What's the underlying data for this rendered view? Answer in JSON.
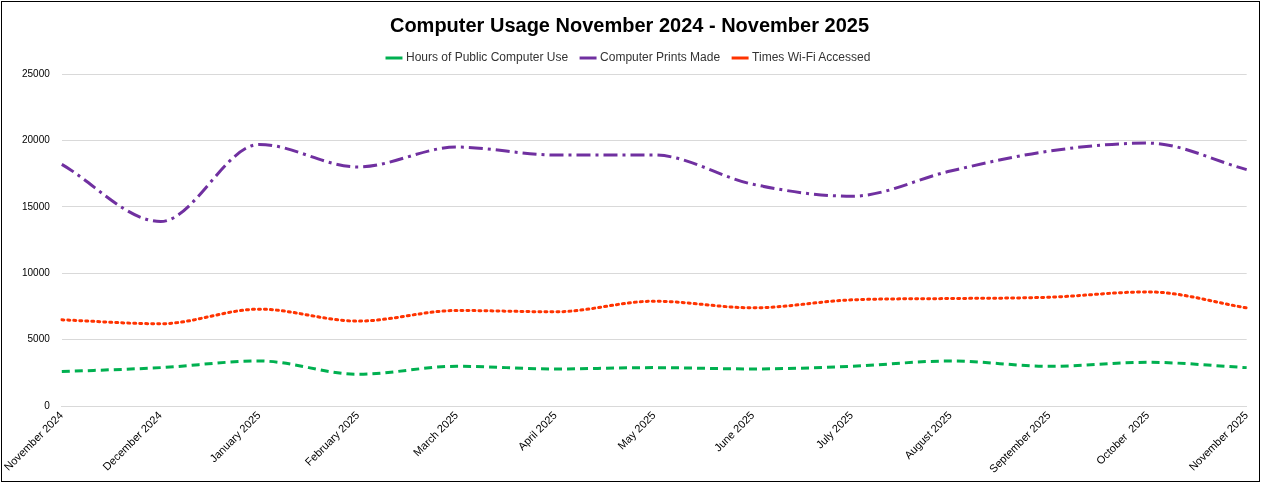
{
  "chart_data": {
    "type": "line",
    "title": "Computer Usage November 2024 - November 2025",
    "categories": [
      "November 2024",
      "December 2024",
      "January 2025",
      "February 2025",
      "March 2025",
      "April 2025",
      "May 2025",
      "June 2025",
      "July 2025",
      "August 2025",
      "September 2025",
      "October  2025",
      "November 2025"
    ],
    "series": [
      {
        "name": "Hours of Public Computer Use",
        "color": "#00b050",
        "line_style": "dashed",
        "values": [
          2600,
          2900,
          3400,
          2400,
          3000,
          2800,
          2900,
          2800,
          3000,
          3400,
          3000,
          3300,
          2900
        ]
      },
      {
        "name": "Computer Prints Made",
        "color": "#7030a0",
        "line_style": "dashdot",
        "values": [
          18200,
          13900,
          19700,
          18000,
          19500,
          18900,
          18900,
          16700,
          15800,
          17700,
          19200,
          19800,
          17800
        ]
      },
      {
        "name": "Times Wi-Fi Accessed",
        "color": "#ff3300",
        "line_style": "dotted",
        "values": [
          6500,
          6200,
          7300,
          6400,
          7200,
          7100,
          7900,
          7400,
          8000,
          8100,
          8200,
          8600,
          7400
        ]
      }
    ],
    "ylim": [
      0,
      25000
    ],
    "yticks": [
      0,
      5000,
      10000,
      15000,
      20000,
      25000
    ],
    "grid": "y",
    "legend": "top",
    "marker": "none"
  }
}
